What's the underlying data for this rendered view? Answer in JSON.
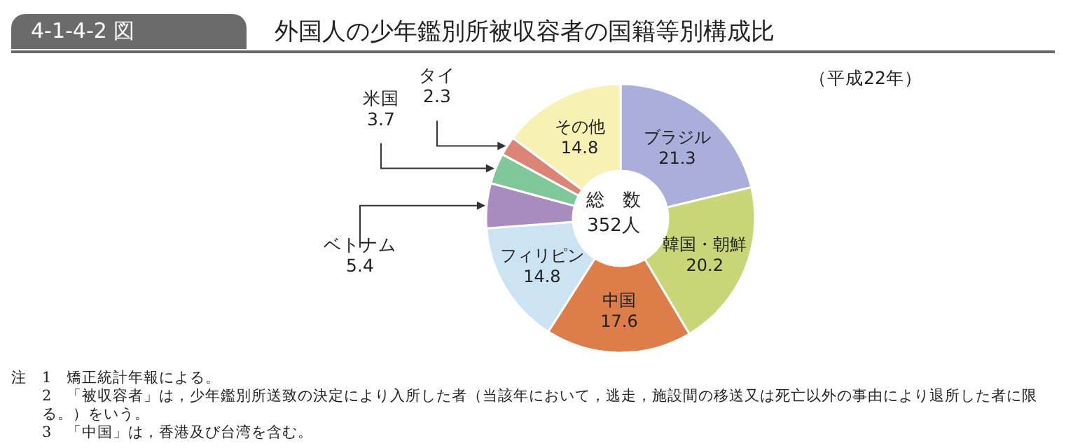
{
  "chart_data": {
    "type": "donut",
    "title": "外国人の少年鑑別所被収容者の国籍等別構成比",
    "subtitle": "（平成22年）",
    "categories": [
      "ブラジル",
      "韓国・朝鮮",
      "中国",
      "フィリピン",
      "ベトナム",
      "米国",
      "タイ",
      "その他"
    ],
    "values": [
      21.3,
      20.2,
      17.6,
      14.8,
      5.4,
      3.7,
      2.3,
      14.8
    ],
    "colors": [
      "#a9afda",
      "#c9d677",
      "#dc7d4a",
      "#cbe3f2",
      "#a88cc0",
      "#80c79a",
      "#dc8577",
      "#f7f2b4"
    ],
    "data_labels": true,
    "annotations": [
      "4-1-4-2 図",
      "総　数",
      "352人",
      "注　1　矯正統計年報による。",
      "2　「被収容者」は，少年鑑別所送致の決定により入所した者（当該年において，逃走，施設間の移送又は死亡以外の事由により退所した者に限る。）をいう。",
      "3　「中国」は，香港及び台湾を含む。"
    ]
  }
}
